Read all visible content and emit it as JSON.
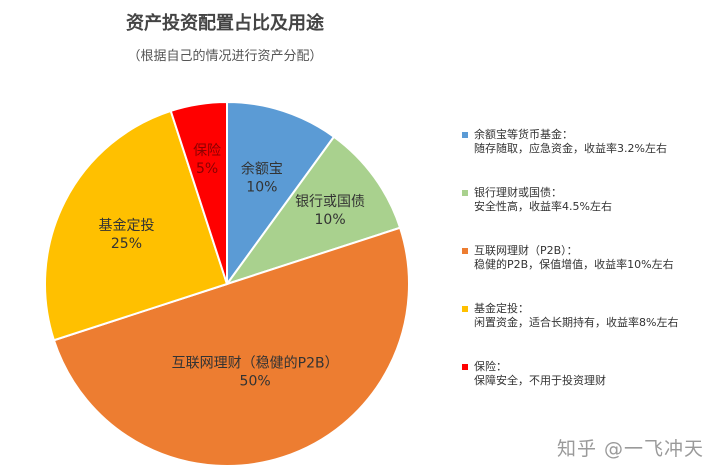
{
  "title": "资产投资配置占比及用途",
  "subtitle": "（根据自己的情况进行资产分配）",
  "watermark": "知乎 @一飞冲天",
  "chart_data": {
    "type": "pie",
    "title": "资产投资配置占比及用途",
    "subtitle": "（根据自己的情况进行资产分配）",
    "slices": [
      {
        "label": "余额宝",
        "value": 10,
        "pct_label": "10%",
        "color": "#5b9bd5"
      },
      {
        "label": "银行或国债",
        "value": 10,
        "pct_label": "10%",
        "color": "#a9d18e"
      },
      {
        "label": "互联网理财（稳健的P2B）",
        "value": 50,
        "pct_label": "50%",
        "color": "#ed7d31"
      },
      {
        "label": "基金定投",
        "value": 25,
        "pct_label": "25%",
        "color": "#ffc000"
      },
      {
        "label": "保险",
        "value": 5,
        "pct_label": "5%",
        "color": "#ff0000"
      }
    ],
    "legend": [
      {
        "line1": "余额宝等货币基金：",
        "line2": "随存随取，应急资金，收益率3.2%左右",
        "color": "#5b9bd5"
      },
      {
        "line1": "银行理财或国债：",
        "line2": "安全性高，收益率4.5%左右",
        "color": "#a9d18e"
      },
      {
        "line1": "互联网理财（P2B）：",
        "line2": "稳健的P2B，保值增值，收益率10%左右",
        "color": "#ed7d31"
      },
      {
        "line1": "基金定投：",
        "line2": "闲置资金，适合长期持有，收益率8%左右",
        "color": "#ffc000"
      },
      {
        "line1": "保险：",
        "line2": "保障安全，不用于投资理财",
        "color": "#ff0000"
      }
    ]
  }
}
